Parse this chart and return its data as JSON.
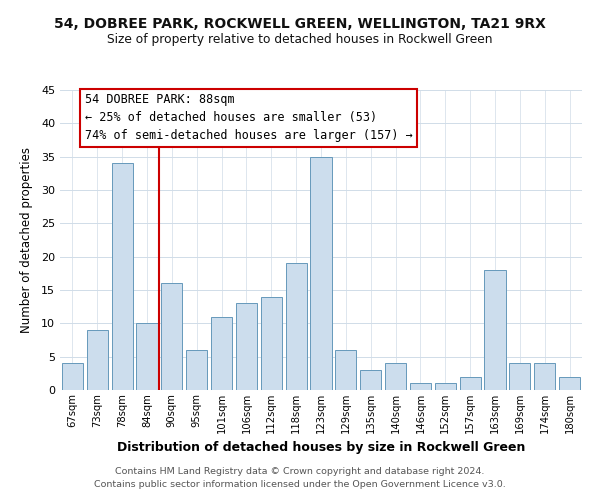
{
  "title1": "54, DOBREE PARK, ROCKWELL GREEN, WELLINGTON, TA21 9RX",
  "title2": "Size of property relative to detached houses in Rockwell Green",
  "xlabel": "Distribution of detached houses by size in Rockwell Green",
  "ylabel": "Number of detached properties",
  "bar_labels": [
    "67sqm",
    "73sqm",
    "78sqm",
    "84sqm",
    "90sqm",
    "95sqm",
    "101sqm",
    "106sqm",
    "112sqm",
    "118sqm",
    "123sqm",
    "129sqm",
    "135sqm",
    "140sqm",
    "146sqm",
    "152sqm",
    "157sqm",
    "163sqm",
    "169sqm",
    "174sqm",
    "180sqm"
  ],
  "bar_values": [
    4,
    9,
    34,
    10,
    16,
    6,
    11,
    13,
    14,
    19,
    35,
    6,
    3,
    4,
    1,
    1,
    2,
    18,
    4,
    4,
    2
  ],
  "bar_color": "#ccdded",
  "bar_edge_color": "#6699bb",
  "ylim": [
    0,
    45
  ],
  "yticks": [
    0,
    5,
    10,
    15,
    20,
    25,
    30,
    35,
    40,
    45
  ],
  "annotation_title": "54 DOBREE PARK: 88sqm",
  "annotation_line1": "← 25% of detached houses are smaller (53)",
  "annotation_line2": "74% of semi-detached houses are larger (157) →",
  "vline_x_index": 4,
  "vline_color": "#cc0000",
  "box_color": "#ffffff",
  "box_edge_color": "#cc0000",
  "footer1": "Contains HM Land Registry data © Crown copyright and database right 2024.",
  "footer2": "Contains public sector information licensed under the Open Government Licence v3.0.",
  "background_color": "#ffffff",
  "plot_background": "#ffffff",
  "grid_color": "#d0dce8"
}
